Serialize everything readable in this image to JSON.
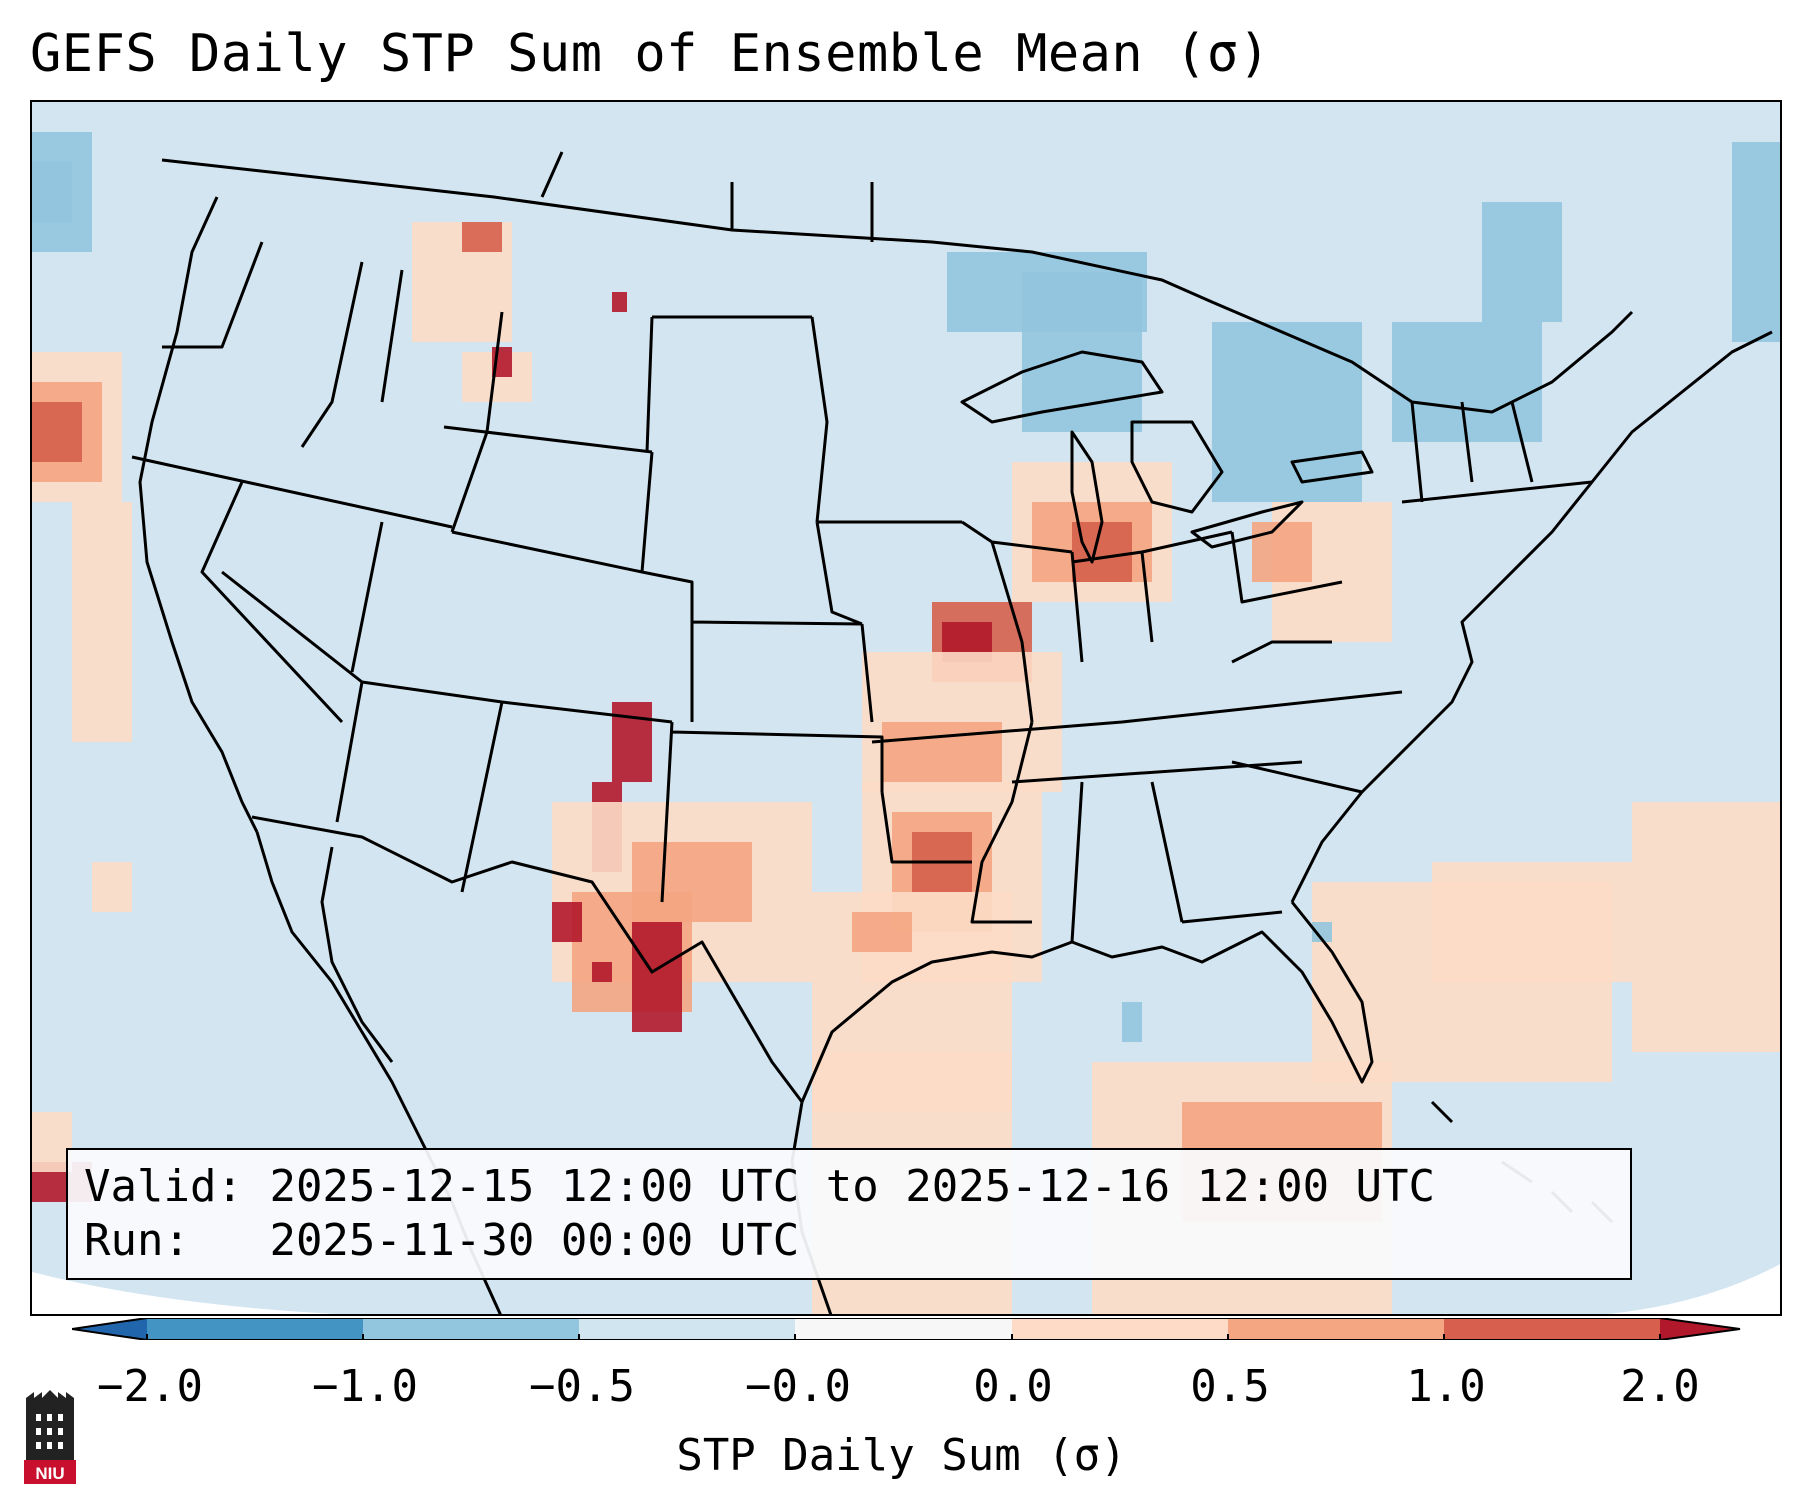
{
  "title": "GEFS Daily STP Sum of Ensemble Mean (σ)",
  "info": {
    "valid_label": "Valid:",
    "valid_value": "2025-12-15 12:00 UTC to 2025-12-16 12:00 UTC",
    "run_label": "Run:",
    "run_value": "2025-11-30 00:00 UTC"
  },
  "colorbar": {
    "label": "STP Daily Sum (σ)",
    "ticks": [
      "−2.0",
      "−1.0",
      "−0.5",
      "−0.0",
      "0.0",
      "0.5",
      "1.0",
      "2.0"
    ],
    "colors": {
      "under": "#2166ac",
      "bin_neg2_neg1": "#4393c3",
      "bin_neg1_neg05": "#92c5de",
      "bin_neg05_0": "#d1e5f0",
      "bin_zero": "#f7f7f7",
      "bin_0_05": "#fddbc7",
      "bin_05_1": "#f4a582",
      "bin_1_2": "#d6604d",
      "over": "#b2182b"
    }
  },
  "map_colors": {
    "background": "#d3e5f0",
    "light_blue": "#92c5de",
    "light_orange": "#fddbc7",
    "orange": "#f4a582",
    "red_orange": "#d6604d",
    "dark_red": "#b2182b"
  },
  "logo": {
    "text": "NIU"
  }
}
